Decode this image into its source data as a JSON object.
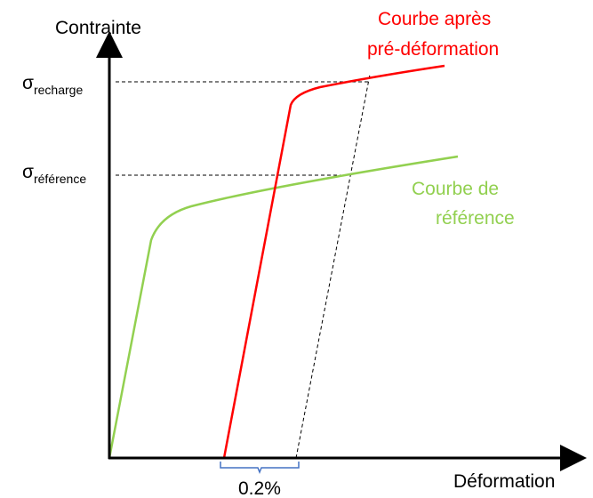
{
  "axes": {
    "y_label": "Contrainte",
    "x_label": "Déformation"
  },
  "levels": [
    {
      "symbol": "σ",
      "subscript": "recharge"
    },
    {
      "symbol": "σ",
      "subscript": "référence"
    }
  ],
  "curves": [
    {
      "lines": [
        "Courbe après",
        "pré-déformation"
      ]
    },
    {
      "lines": [
        "Courbe de",
        "référence"
      ]
    }
  ],
  "offset_label": "0.2%"
}
